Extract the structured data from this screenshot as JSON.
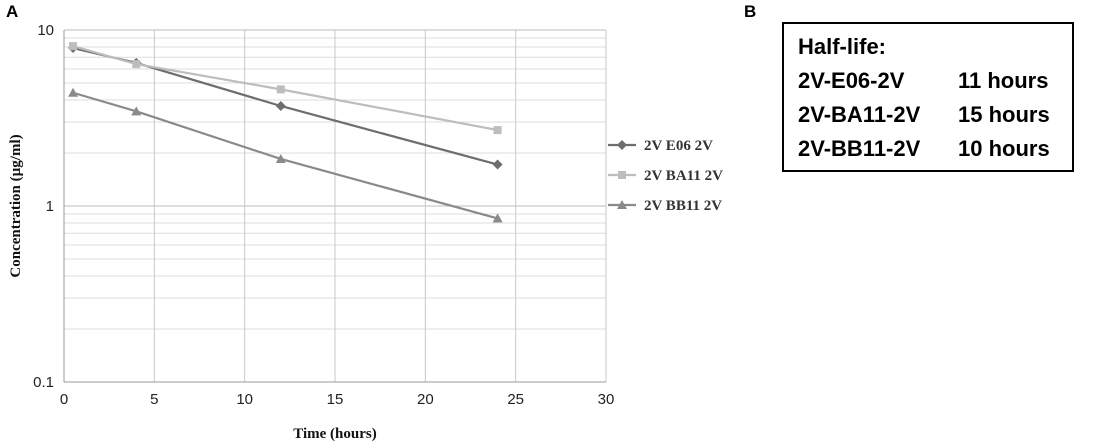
{
  "panel_a_label": "A",
  "panel_b_label": "B",
  "chart_data": {
    "type": "line",
    "xlabel": "Time (hours)",
    "ylabel": "Concentration (µg/ml)",
    "xlim": [
      0,
      30
    ],
    "ylim": [
      0.1,
      10
    ],
    "yscale": "log",
    "grid": true,
    "legend_position": "right",
    "x_ticks": [
      "0",
      "5",
      "10",
      "15",
      "20",
      "25",
      "30"
    ],
    "y_ticks": [
      "0.1",
      "1",
      "10"
    ],
    "series": [
      {
        "name": "2V E06 2V",
        "marker": "diamond",
        "color": "#6e6e6e",
        "x": [
          0.5,
          4,
          12,
          24
        ],
        "y": [
          7.9,
          6.5,
          3.7,
          1.72
        ]
      },
      {
        "name": "2V BA11 2V",
        "marker": "square",
        "color": "#bdbdbd",
        "x": [
          0.5,
          4,
          12,
          24
        ],
        "y": [
          8.1,
          6.4,
          4.6,
          2.7
        ]
      },
      {
        "name": "2V BB11 2V",
        "marker": "triangle",
        "color": "#8a8a8a",
        "x": [
          0.5,
          4,
          12,
          24
        ],
        "y": [
          4.4,
          3.45,
          1.85,
          0.85
        ]
      }
    ]
  },
  "half_life": {
    "title": "Half-life:",
    "rows": [
      {
        "name": "2V-E06-2V",
        "value": "11 hours"
      },
      {
        "name": "2V-BA11-2V",
        "value": "15 hours"
      },
      {
        "name": "2V-BB11-2V",
        "value": "10 hours"
      }
    ]
  }
}
